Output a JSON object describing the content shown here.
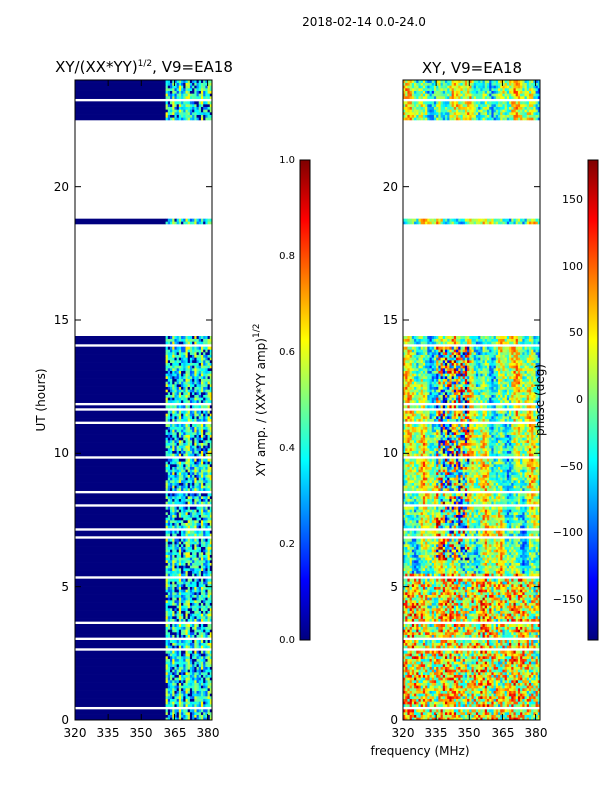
{
  "suptitle": "2018-02-14 0.0-24.0",
  "colormap_jet": [
    "#00007f",
    "#0000ff",
    "#007fff",
    "#00ffff",
    "#7fff7f",
    "#ffff00",
    "#ff7f00",
    "#ff0000",
    "#7f0000"
  ],
  "chart_data": [
    {
      "type": "heatmap",
      "name": "amplitude-panel",
      "title_main": "XY/(XX*YY)",
      "title_exp": "1/2",
      "title_tail": ", V9=EA18",
      "xlabel": "",
      "ylabel": "UT (hours)",
      "xlim": [
        320,
        382
      ],
      "ylim": [
        0,
        24
      ],
      "xticks": [
        320,
        335,
        350,
        365,
        380
      ],
      "yticks": [
        0,
        5,
        10,
        15,
        20
      ],
      "colorbar": {
        "label_main": "XY amp. / (XX*YY amp)",
        "label_exp": "1/2",
        "range": [
          0.0,
          1.0
        ],
        "ticks": [
          "0.0",
          "0.2",
          "0.4",
          "0.6",
          "0.8",
          "1.0"
        ],
        "tick_values": [
          0.0,
          0.2,
          0.4,
          0.6,
          0.8,
          1.0
        ]
      },
      "data_gaps_ut_hours": [
        [
          14.4,
          18.6
        ],
        [
          18.8,
          22.5
        ]
      ],
      "active_band_mhz": [
        361,
        382
      ],
      "low_freq_value": 0.0,
      "typical_active_value": 0.35
    },
    {
      "type": "heatmap",
      "name": "phase-panel",
      "title_main": "XY, V9=EA18",
      "xlabel": "frequency (MHz)",
      "ylabel": "",
      "xlim": [
        320,
        382
      ],
      "ylim": [
        0,
        24
      ],
      "xticks": [
        320,
        335,
        350,
        365,
        380
      ],
      "yticks": [
        0,
        5,
        10,
        15,
        20
      ],
      "colorbar": {
        "label_main": "phase (deg)",
        "range": [
          -180,
          180
        ],
        "ticks": [
          "−150",
          "−100",
          "−50",
          "0",
          "50",
          "100",
          "150"
        ],
        "tick_values": [
          -150,
          -100,
          -50,
          0,
          50,
          100,
          150
        ]
      },
      "data_gaps_ut_hours": [
        [
          14.4,
          18.6
        ],
        [
          18.8,
          22.5
        ]
      ]
    }
  ]
}
